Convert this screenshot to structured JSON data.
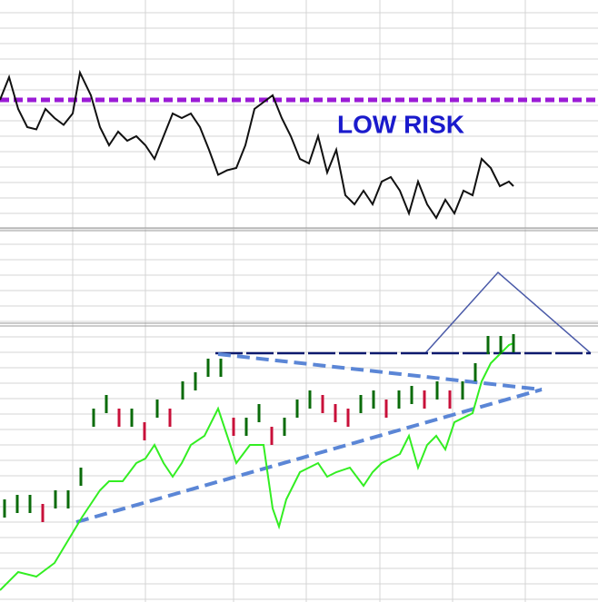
{
  "chart_data": [
    {
      "type": "line",
      "annotation": "LOW RISK",
      "annotation_color": "#1a1acc",
      "xlim": [
        0,
        658
      ],
      "ylim": [
        0,
        100
      ],
      "x": [
        0,
        10,
        20,
        30,
        40,
        50,
        60,
        70,
        80,
        88,
        100,
        110,
        120,
        130,
        140,
        150,
        160,
        170,
        180,
        190,
        200,
        210,
        220,
        230,
        240,
        250,
        260,
        270,
        280,
        290,
        300,
        310,
        320,
        330,
        340,
        350,
        360,
        370,
        380,
        390,
        400,
        410,
        420,
        430,
        440,
        450,
        460,
        470,
        480,
        490,
        500,
        510,
        520,
        530,
        540,
        550,
        560,
        565
      ],
      "values": [
        56,
        66,
        52,
        44,
        43,
        52,
        48,
        45,
        50,
        68,
        58,
        44,
        36,
        42,
        38,
        40,
        36,
        30,
        40,
        50,
        48,
        50,
        44,
        34,
        23,
        25,
        26,
        36,
        52,
        55,
        58,
        48,
        40,
        30,
        28,
        40,
        24,
        34,
        14,
        10,
        16,
        10,
        20,
        22,
        16,
        6,
        20,
        10,
        4,
        12,
        6,
        16,
        14,
        30,
        26,
        18,
        20,
        18
      ],
      "color": "#111111",
      "reference_line": {
        "value": 56,
        "color": "#9b1bd6"
      }
    },
    {
      "type": "price",
      "xlim": [
        0,
        658
      ],
      "ylim": [
        0,
        303
      ],
      "bars": {
        "x": [
          5,
          19,
          33,
          47,
          61,
          75,
          89,
          103,
          117,
          131,
          145,
          159,
          173,
          187,
          201,
          215,
          229,
          243,
          257,
          271,
          285,
          299,
          313,
          327,
          341,
          355,
          369,
          383,
          397,
          411,
          425,
          439,
          453,
          467,
          481,
          495,
          509,
          523,
          537,
          551,
          565
        ],
        "high": [
          113,
          118,
          118,
          108,
          123,
          123,
          148,
          213,
          228,
          213,
          213,
          198,
          223,
          213,
          243,
          253,
          268,
          268,
          203,
          203,
          218,
          193,
          203,
          223,
          233,
          228,
          218,
          213,
          228,
          233,
          223,
          233,
          238,
          233,
          243,
          233,
          243,
          263,
          293,
          293,
          295
        ],
        "low": [
          93,
          98,
          98,
          88,
          103,
          103,
          128,
          193,
          208,
          193,
          193,
          178,
          203,
          193,
          223,
          233,
          248,
          248,
          183,
          183,
          198,
          173,
          183,
          203,
          213,
          208,
          198,
          193,
          208,
          213,
          203,
          213,
          218,
          213,
          223,
          213,
          223,
          243,
          273,
          273,
          275
        ],
        "up_color": "#0a6b0a",
        "down_color": "#c8103a"
      },
      "line": {
        "x": [
          0,
          20,
          40,
          60,
          75,
          90,
          100,
          110,
          120,
          135,
          150,
          160,
          170,
          180,
          190,
          200,
          210,
          225,
          240,
          250,
          260,
          275,
          290,
          300,
          307,
          315,
          330,
          340,
          350,
          360,
          370,
          385,
          400,
          410,
          420,
          440,
          450,
          460,
          470,
          480,
          490,
          500,
          510,
          520,
          530,
          540,
          550,
          560,
          565
        ],
        "values": [
          13,
          33,
          28,
          43,
          68,
          93,
          108,
          123,
          133,
          133,
          153,
          158,
          173,
          153,
          138,
          153,
          173,
          183,
          213,
          183,
          153,
          173,
          173,
          103,
          83,
          113,
          143,
          148,
          153,
          138,
          143,
          148,
          128,
          143,
          153,
          163,
          183,
          148,
          173,
          183,
          168,
          198,
          203,
          208,
          243,
          263,
          273,
          283,
          285
        ],
        "color": "#33ee22"
      }
    }
  ]
}
